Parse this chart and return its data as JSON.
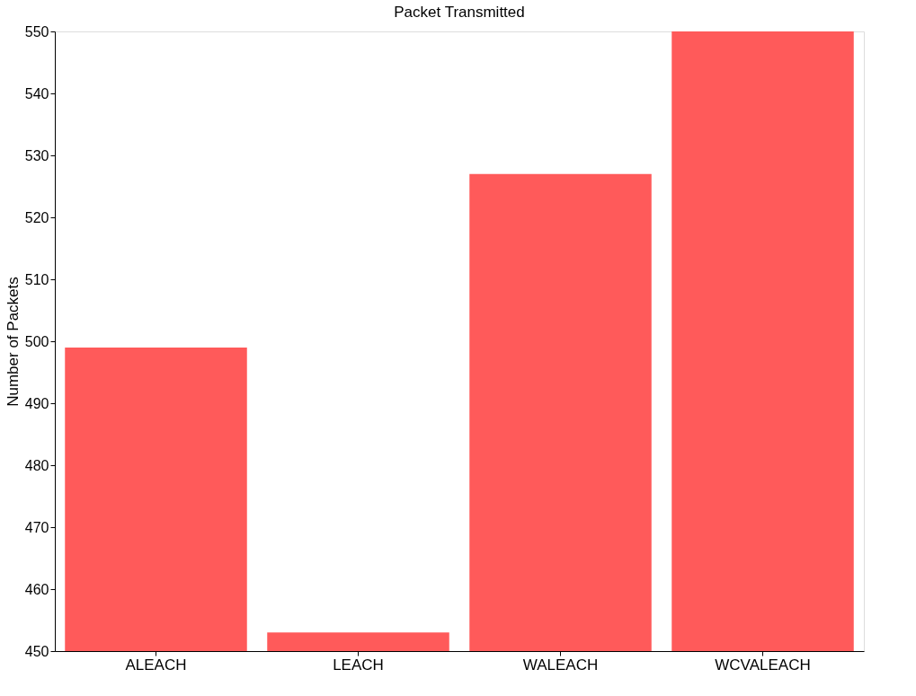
{
  "chart_data": {
    "type": "bar",
    "title": "Packet Transmitted",
    "ylabel": "Number of Packets",
    "categories": [
      "ALEACH",
      "LEACH",
      "WALEACH",
      "WCVALEACH"
    ],
    "values": [
      499,
      453,
      527,
      550
    ],
    "color": "#ff5a5a",
    "ylim": [
      450,
      550
    ],
    "yticks": [
      450,
      460,
      470,
      480,
      490,
      500,
      510,
      520,
      530,
      540,
      550
    ],
    "grid": false
  }
}
